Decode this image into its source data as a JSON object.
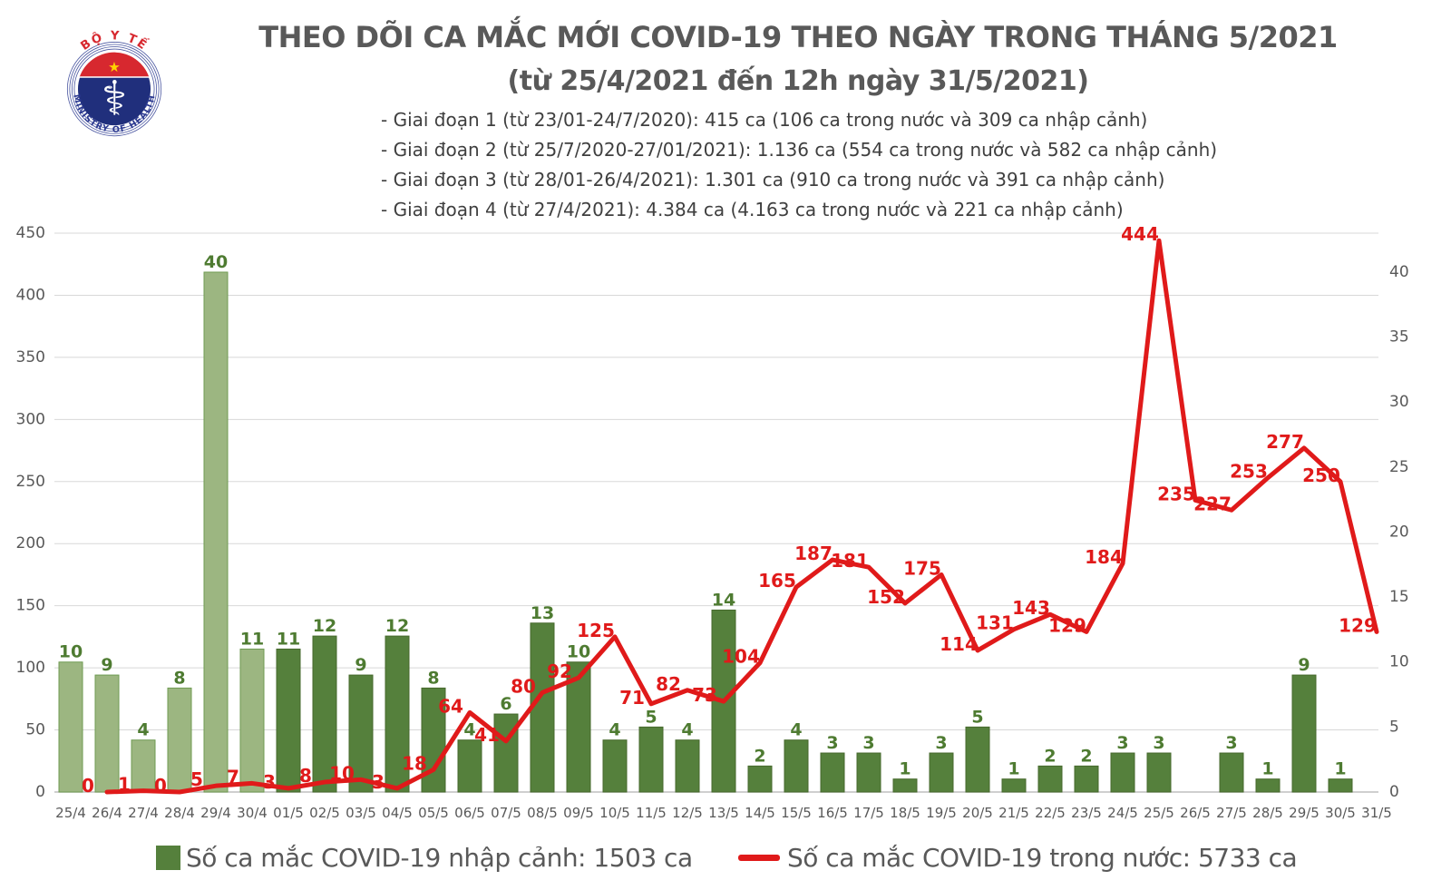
{
  "header": {
    "logo": {
      "top_text": "BỘ Y TẾ",
      "bottom_text": "MINISTRY OF HEALTH",
      "ring_color": "#2b3990",
      "disc_color": "#202f7c",
      "cap_color": "#d7282f",
      "star_color": "#ffd200",
      "staff_icon": "⚕"
    }
  },
  "chart_data": {
    "type": "bar+line",
    "title": "THEO DÕI CA MẮC MỚI COVID-19 THEO NGÀY TRONG THÁNG 5/2021",
    "subtitle": "(từ 25/4/2021 đến 12h ngày 31/5/2021)",
    "annotations": [
      "- Giai đoạn 1 (từ 23/01-24/7/2020): 415 ca (106 ca trong nước và 309 ca nhập cảnh)",
      "- Giai đoạn 2 (từ 25/7/2020-27/01/2021): 1.136 ca (554 ca trong nước và 582 ca nhập cảnh)",
      "- Giai đoạn 3 (từ 28/01-26/4/2021): 1.301 ca (910 ca trong nước và 391 ca nhập cảnh)",
      "- Giai đoạn 4 (từ 27/4/2021): 4.384 ca (4.163 ca trong nước và 221 ca nhập cảnh)"
    ],
    "categories": [
      "25/4",
      "26/4",
      "27/4",
      "28/4",
      "29/4",
      "30/4",
      "01/5",
      "02/5",
      "03/5",
      "04/5",
      "05/5",
      "06/5",
      "07/5",
      "08/5",
      "09/5",
      "10/5",
      "11/5",
      "12/5",
      "13/5",
      "14/5",
      "15/5",
      "16/5",
      "17/5",
      "18/5",
      "19/5",
      "20/5",
      "21/5",
      "22/5",
      "23/5",
      "24/5",
      "25/5",
      "26/5",
      "27/5",
      "28/5",
      "29/5",
      "30/5",
      "31/5"
    ],
    "series": [
      {
        "name": "Số ca mắc COVID-19 nhập cảnh: 1503 ca",
        "type": "bar",
        "axis": "right",
        "values": [
          10,
          9,
          4,
          8,
          40,
          11,
          11,
          12,
          9,
          12,
          8,
          4,
          6,
          13,
          10,
          4,
          5,
          4,
          14,
          2,
          4,
          3,
          3,
          1,
          3,
          5,
          1,
          2,
          2,
          3,
          3,
          0,
          3,
          1,
          9,
          1,
          0
        ],
        "color": "#55803c",
        "color_light": "#9cb681",
        "border": "#46682c",
        "border_light": "#6f9b52",
        "light_through_index": 5,
        "label_color": "#4e7b31"
      },
      {
        "name": "Số ca mắc COVID-19 trong nước: 5733 ca",
        "type": "line",
        "axis": "left",
        "values": [
          null,
          0,
          1,
          0,
          5,
          7,
          3,
          8,
          10,
          3,
          18,
          64,
          41,
          80,
          92,
          125,
          71,
          82,
          73,
          104,
          165,
          187,
          181,
          152,
          175,
          114,
          131,
          143,
          129,
          184,
          444,
          235,
          227,
          253,
          277,
          250,
          129
        ],
        "color": "#e01a1a",
        "label_color": "#e01a1a"
      }
    ],
    "left_axis": {
      "min": 0,
      "max": 450,
      "step": 50
    },
    "right_axis": {
      "min": 0,
      "max": 43,
      "labels": [
        0,
        5,
        10,
        15,
        20,
        25,
        30,
        35,
        40
      ]
    },
    "grid": "horizontal",
    "axis_text_color": "#595959",
    "grid_color": "#d8d8d8",
    "axis_line_color": "#bfbfbf",
    "legend_position": "bottom"
  }
}
